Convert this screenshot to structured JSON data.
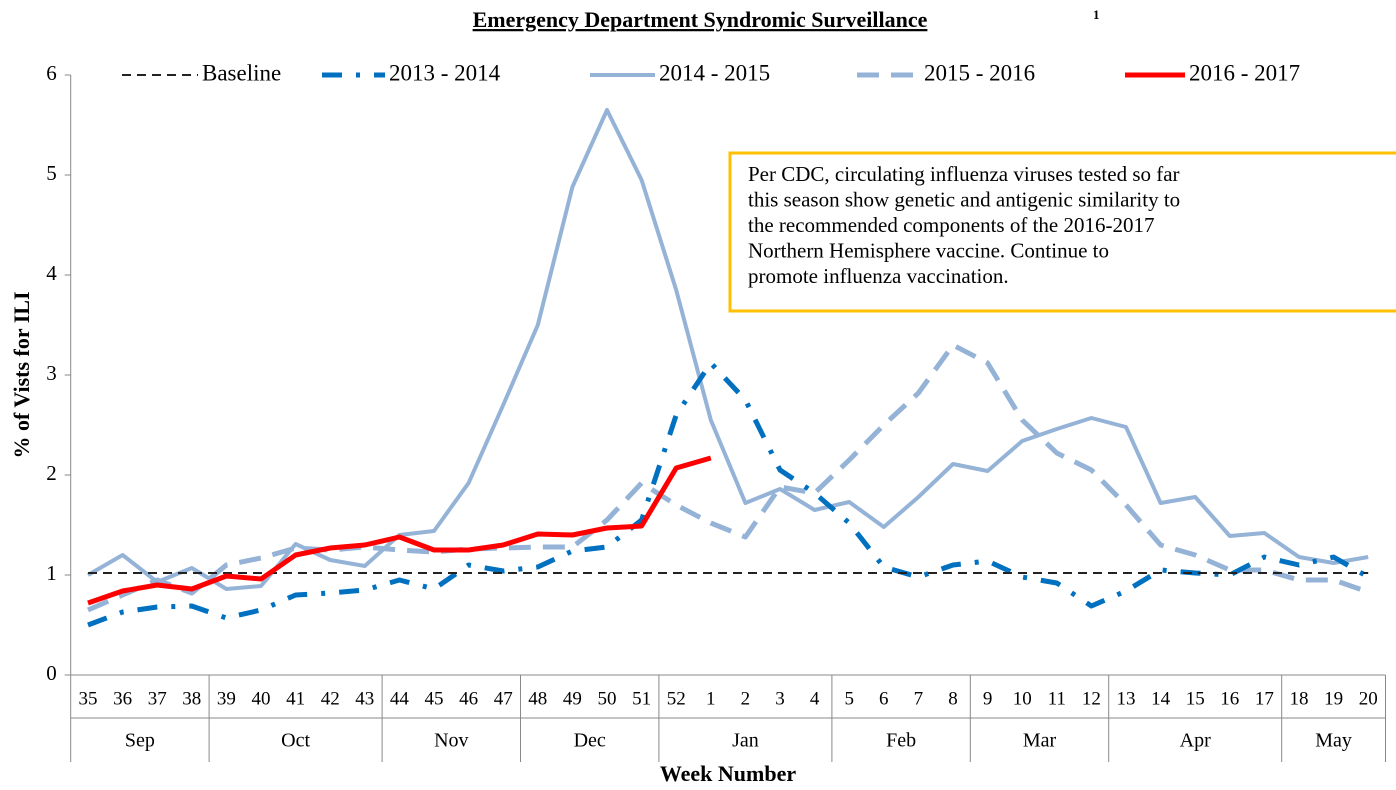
{
  "chart_data": {
    "type": "line",
    "title": "Emergency Department Syndromic Surveillance",
    "title_footnote": "1",
    "x_label": "Week Number",
    "y_label": "% of Vists for ILI",
    "categories": [
      "35",
      "36",
      "37",
      "38",
      "39",
      "40",
      "41",
      "42",
      "43",
      "44",
      "45",
      "46",
      "47",
      "48",
      "49",
      "50",
      "51",
      "52",
      "1",
      "2",
      "3",
      "4",
      "5",
      "6",
      "7",
      "8",
      "9",
      "10",
      "11",
      "12",
      "13",
      "14",
      "15",
      "16",
      "17",
      "18",
      "19",
      "20"
    ],
    "month_groups": [
      {
        "label": "Sep",
        "weeks": 4
      },
      {
        "label": "Oct",
        "weeks": 5
      },
      {
        "label": "Nov",
        "weeks": 4
      },
      {
        "label": "Dec",
        "weeks": 4
      },
      {
        "label": "Jan",
        "weeks": 5
      },
      {
        "label": "Feb",
        "weeks": 4
      },
      {
        "label": "Mar",
        "weeks": 4
      },
      {
        "label": "Apr",
        "weeks": 5
      },
      {
        "label": "May",
        "weeks": 3
      }
    ],
    "ylim": [
      0,
      6
    ],
    "yticks": [
      0,
      1,
      2,
      3,
      4,
      5,
      6
    ],
    "grid": false,
    "annotation": [
      "Per CDC, circulating influenza viruses tested so far",
      "this season show genetic and antigenic similarity to",
      "the recommended components of the 2016-2017",
      "Northern Hemisphere vaccine. Continue to",
      "promote influenza vaccination."
    ],
    "annotation_border": "#ffc000",
    "series": [
      {
        "name": "Baseline",
        "color": "#222222",
        "width": 2,
        "dash": "9,6",
        "values": [
          1.02,
          1.02,
          1.02,
          1.02,
          1.02,
          1.02,
          1.02,
          1.02,
          1.02,
          1.02,
          1.02,
          1.02,
          1.02,
          1.02,
          1.02,
          1.02,
          1.02,
          1.02,
          1.02,
          1.02,
          1.02,
          1.02,
          1.02,
          1.02,
          1.02,
          1.02,
          1.02,
          1.02,
          1.02,
          1.02,
          1.02,
          1.02,
          1.02,
          1.02,
          1.02,
          1.02,
          1.02,
          1.02
        ]
      },
      {
        "name": "2013 - 2014",
        "color": "#0070c0",
        "width": 5,
        "dash": "20,14,4,14",
        "values": [
          0.5,
          0.63,
          0.68,
          0.69,
          0.57,
          0.65,
          0.8,
          0.82,
          0.85,
          0.95,
          0.86,
          1.1,
          1.04,
          1.08,
          1.24,
          1.28,
          1.55,
          2.6,
          3.12,
          2.75,
          2.05,
          1.82,
          1.52,
          1.08,
          0.98,
          1.1,
          1.14,
          0.98,
          0.92,
          0.69,
          0.84,
          1.05,
          1.02,
          1.0,
          1.18,
          1.1,
          1.18,
          0.98
        ]
      },
      {
        "name": "2014 - 2015",
        "color": "#95b3d7",
        "width": 4,
        "dash": "none",
        "values": [
          1.0,
          1.2,
          0.93,
          1.07,
          0.86,
          0.89,
          1.31,
          1.15,
          1.09,
          1.4,
          1.44,
          1.92,
          2.7,
          3.5,
          4.88,
          5.65,
          4.95,
          3.85,
          2.55,
          1.72,
          1.86,
          1.65,
          1.73,
          1.48,
          1.78,
          2.11,
          2.04,
          2.34,
          2.46,
          2.57,
          2.48,
          1.72,
          1.78,
          1.39,
          1.42,
          1.18,
          1.12,
          1.18
        ]
      },
      {
        "name": "2015 - 2016",
        "color": "#95b3d7",
        "width": 5,
        "dash": "22,12",
        "values": [
          0.65,
          0.8,
          0.95,
          0.82,
          1.1,
          1.17,
          1.27,
          1.25,
          1.28,
          1.25,
          1.23,
          1.26,
          1.27,
          1.28,
          1.28,
          1.55,
          1.92,
          1.7,
          1.52,
          1.38,
          1.88,
          1.82,
          2.15,
          2.5,
          2.82,
          3.3,
          3.12,
          2.55,
          2.22,
          2.05,
          1.7,
          1.3,
          1.2,
          1.05,
          1.05,
          0.95,
          0.95,
          0.83
        ]
      },
      {
        "name": "2016 - 2017",
        "color": "#ff0000",
        "width": 5,
        "dash": "none",
        "values": [
          0.72,
          0.84,
          0.9,
          0.86,
          0.99,
          0.96,
          1.2,
          1.27,
          1.3,
          1.38,
          1.25,
          1.25,
          1.3,
          1.41,
          1.4,
          1.47,
          1.49,
          2.07,
          2.17,
          null,
          null,
          null,
          null,
          null,
          null,
          null,
          null,
          null,
          null,
          null,
          null,
          null,
          null,
          null,
          null,
          null,
          null,
          null
        ]
      }
    ]
  }
}
